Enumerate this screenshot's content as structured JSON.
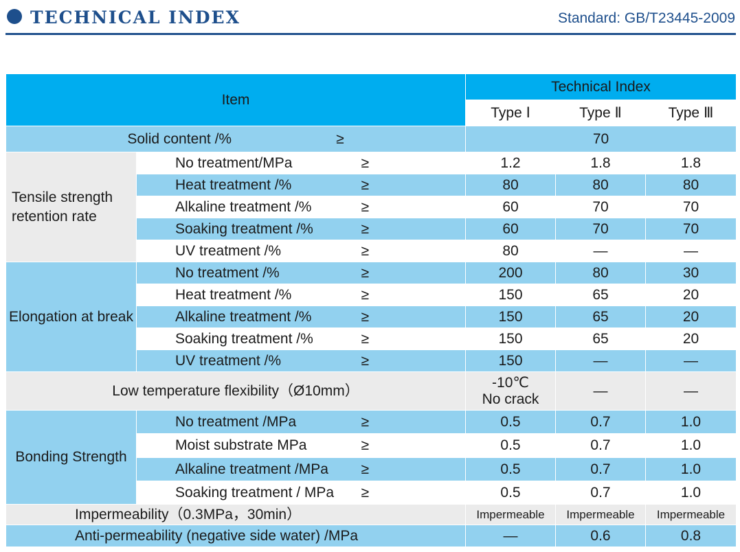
{
  "header": {
    "title": "TECHNICAL INDEX",
    "standard": "Standard: GB/T23445-2009"
  },
  "table": {
    "item_header": "Item",
    "index_header": "Technical Index",
    "types": [
      "Type Ⅰ",
      "Type Ⅱ",
      "Type Ⅲ"
    ],
    "solid_content": {
      "label": "Solid content /%",
      "op": "≥",
      "value": "70"
    },
    "tensile": {
      "group": "Tensile strength retention rate",
      "rows": [
        {
          "label": "No treatment/MPa",
          "op": "≥",
          "values": [
            "1.2",
            "1.8",
            "1.8"
          ]
        },
        {
          "label": "Heat treatment /%",
          "op": "≥",
          "values": [
            "80",
            "80",
            "80"
          ]
        },
        {
          "label": "Alkaline treatment /%",
          "op": "≥",
          "values": [
            "60",
            "70",
            "70"
          ]
        },
        {
          "label": "Soaking treatment /%",
          "op": "≥",
          "values": [
            "60",
            "70",
            "70"
          ]
        },
        {
          "label": "UV treatment /%",
          "op": "≥",
          "values": [
            "80",
            "—",
            "—"
          ]
        }
      ]
    },
    "elongation": {
      "group": "Elongation at break",
      "rows": [
        {
          "label": "No treatment /%",
          "op": "≥",
          "values": [
            "200",
            "80",
            "30"
          ]
        },
        {
          "label": "Heat treatment /%",
          "op": "≥",
          "values": [
            "150",
            "65",
            "20"
          ]
        },
        {
          "label": "Alkaline treatment /%",
          "op": "≥",
          "values": [
            "150",
            "65",
            "20"
          ]
        },
        {
          "label": "Soaking treatment /%",
          "op": "≥",
          "values": [
            "150",
            "65",
            "20"
          ]
        },
        {
          "label": "UV treatment /%",
          "op": "≥",
          "values": [
            "150",
            "—",
            "—"
          ]
        }
      ]
    },
    "low_temp": {
      "label": "Low temperature flexibility（Ø10mm）",
      "values": [
        "-10℃",
        "No crack",
        "—",
        "—"
      ]
    },
    "bonding": {
      "group": "Bonding Strength",
      "rows": [
        {
          "label": "No treatment /MPa",
          "op": "≥",
          "values": [
            "0.5",
            "0.7",
            "1.0"
          ]
        },
        {
          "label": "Moist substrate MPa",
          "op": "≥",
          "values": [
            "0.5",
            "0.7",
            "1.0"
          ]
        },
        {
          "label": "Alkaline treatment /MPa",
          "op": "≥",
          "values": [
            "0.5",
            "0.7",
            "1.0"
          ]
        },
        {
          "label": "Soaking treatment / MPa",
          "op": "≥",
          "values": [
            "0.5",
            "0.7",
            "1.0"
          ]
        }
      ]
    },
    "impermeability": {
      "label": "Impermeability（0.3MPa，30min）",
      "values": [
        "Impermeable",
        "Impermeable",
        "Impermeable"
      ]
    },
    "anti_permeability": {
      "label": "Anti-permeability (negative side water) /MPa",
      "values": [
        "—",
        "0.6",
        "0.8"
      ]
    }
  }
}
